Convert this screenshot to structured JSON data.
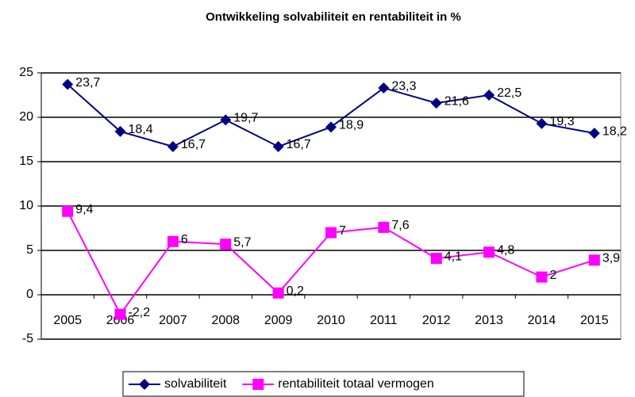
{
  "chart_data": {
    "type": "line",
    "title": "Ontwikkeling solvabiliteit en rentabiliteit in %",
    "categories": [
      "2005",
      "2006",
      "2007",
      "2008",
      "2009",
      "2010",
      "2011",
      "2012",
      "2013",
      "2014",
      "2015"
    ],
    "series": [
      {
        "name": "solvabiliteit",
        "color": "#000080",
        "marker": "diamond",
        "values": [
          23.7,
          18.4,
          16.7,
          19.7,
          16.7,
          18.9,
          23.3,
          21.6,
          22.5,
          19.3,
          18.2
        ],
        "value_labels": [
          "23,7",
          "18,4",
          "16,7",
          "19,7",
          "16,7",
          "18,9",
          "23,3",
          "21,6",
          "22,5",
          "19,3",
          "18,2"
        ]
      },
      {
        "name": "rentabiliteit totaal vermogen",
        "color": "#ff00ff",
        "marker": "square",
        "values": [
          9.4,
          -2.2,
          6,
          5.7,
          0.2,
          7,
          7.6,
          4.1,
          4.8,
          2,
          3.9
        ],
        "value_labels": [
          "9,4",
          "-2,2",
          "6",
          "5,7",
          "0,2",
          "7",
          "7,6",
          "4,1",
          "4,8",
          "2",
          "3,9"
        ]
      }
    ],
    "ylim": [
      -5,
      25
    ],
    "yticks": [
      -5,
      0,
      5,
      10,
      15,
      20,
      25
    ],
    "grid": true,
    "legend": "bottom"
  }
}
